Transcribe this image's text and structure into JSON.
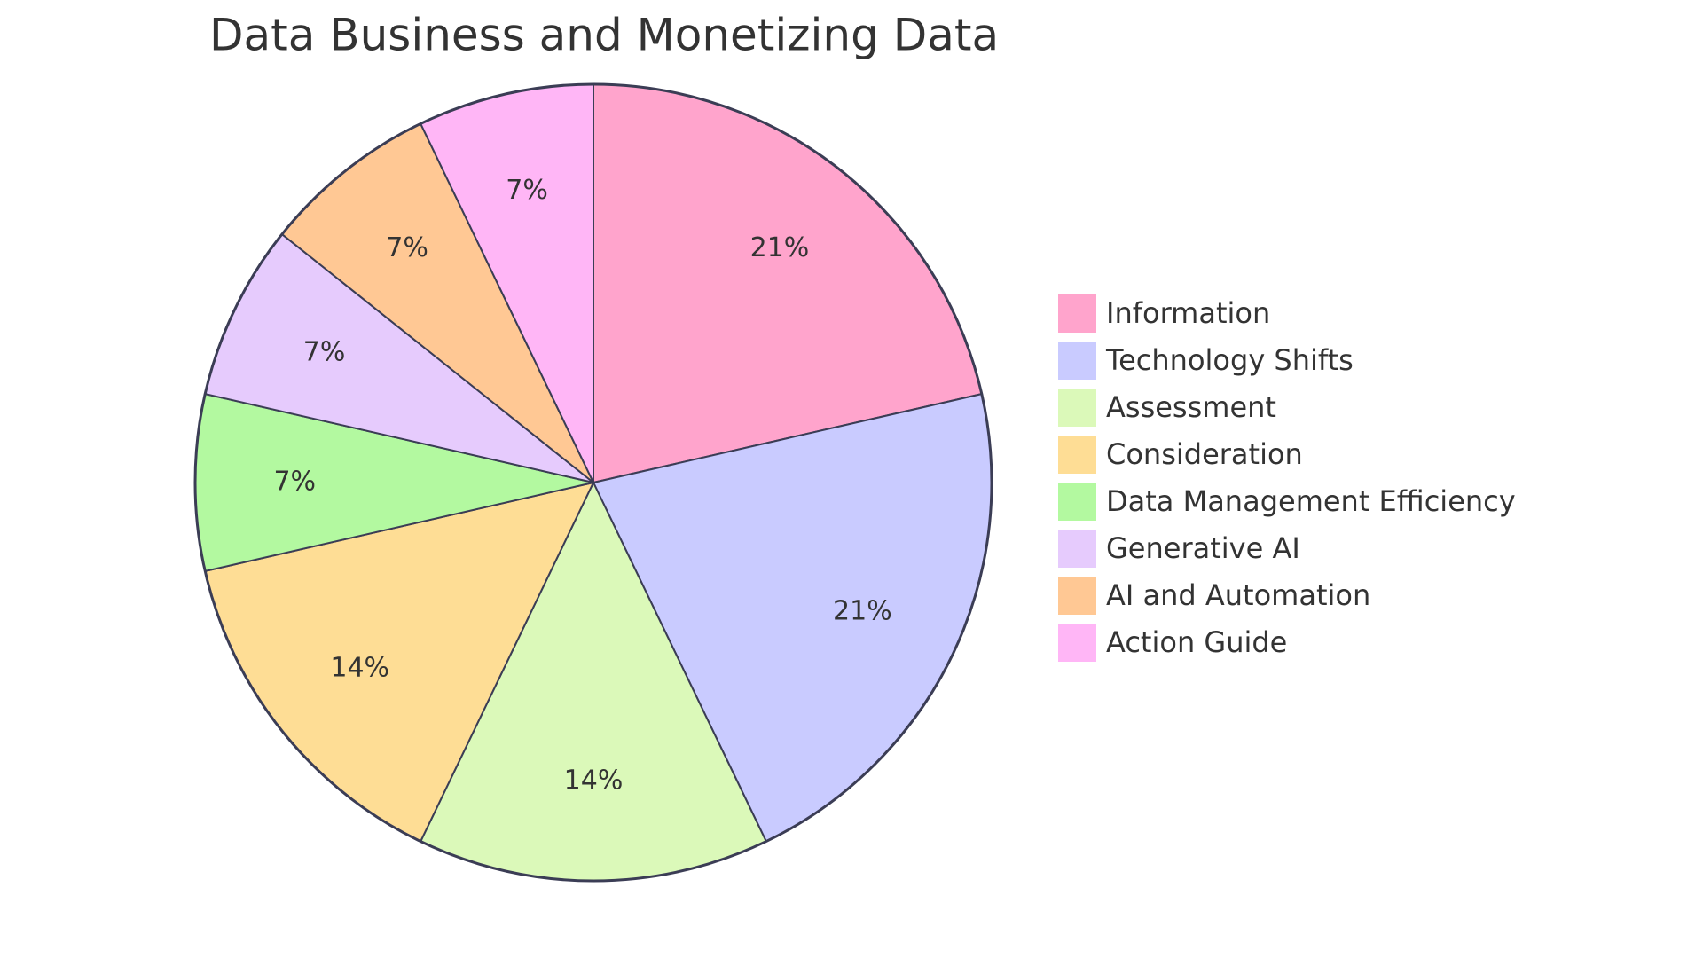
{
  "chart_data": {
    "type": "pie",
    "title": "Data Business and Monetizing Data",
    "categories": [
      "Information",
      "Technology Shifts",
      "Assessment",
      "Consideration",
      "Data Management Efficiency",
      "Generative AI",
      "AI and Automation",
      "Action Guide"
    ],
    "values": [
      21,
      21,
      14,
      14,
      7,
      7,
      7,
      7
    ],
    "value_labels": [
      "21%",
      "21%",
      "14%",
      "14%",
      "7%",
      "7%",
      "7%",
      "7%"
    ],
    "colors": [
      "#ffa4cc",
      "#c9cbff",
      "#dbf9b9",
      "#fedd95",
      "#b3f9a0",
      "#e6cbfd",
      "#ffc894",
      "#ffb6f6"
    ],
    "legend": "right"
  }
}
